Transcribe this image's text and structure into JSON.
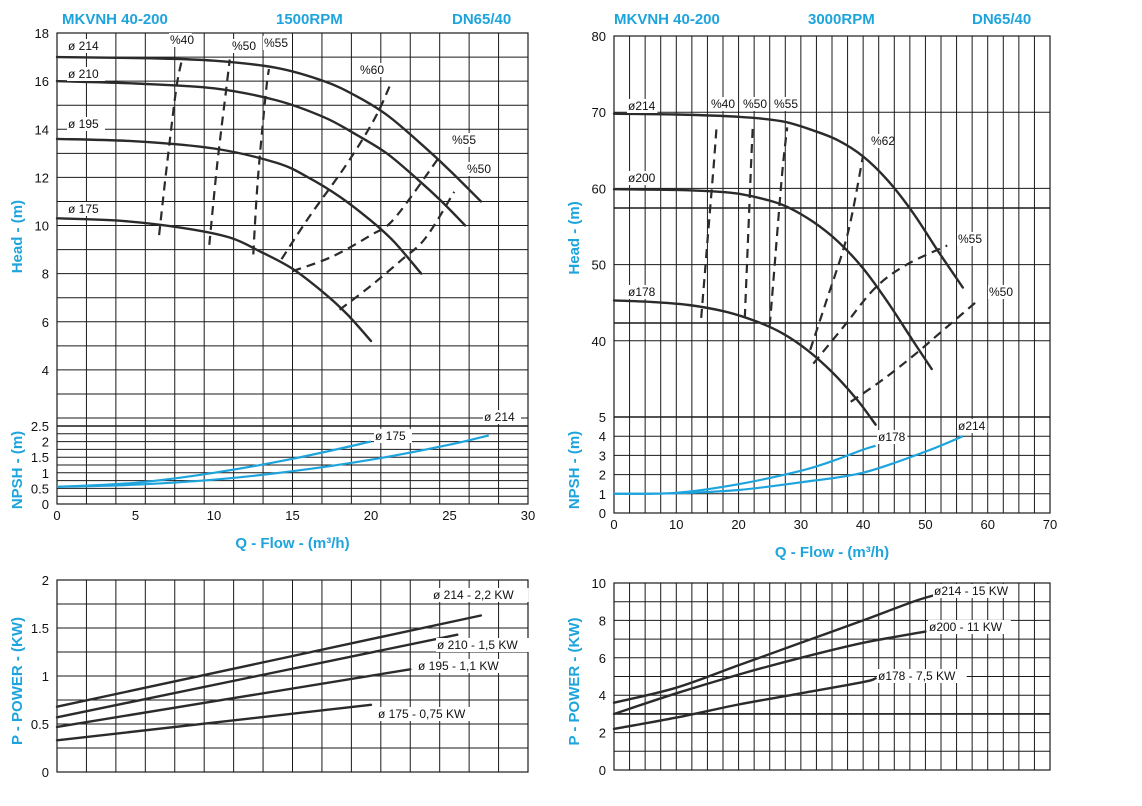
{
  "chart_data": [
    {
      "id": "c1500",
      "type": "line",
      "header": [
        "MKVNH 40-200",
        "1500RPM",
        "DN65/40"
      ],
      "xlabel": "Q - Flow - (m³/h)",
      "ylabel": "Head - (m)",
      "xlim": [
        0,
        30
      ],
      "ylim": [
        2,
        18
      ],
      "x_ticks": [
        0,
        5,
        10,
        15,
        20,
        25,
        30
      ],
      "y_ticks": [
        4,
        6,
        8,
        10,
        12,
        14,
        16,
        18
      ],
      "grid": true,
      "series": [
        {
          "name": "ø 214",
          "x": [
            0,
            6,
            10,
            14,
            17,
            19,
            21,
            23,
            25,
            27
          ],
          "y": [
            17.0,
            16.95,
            16.85,
            16.55,
            16.0,
            15.4,
            14.6,
            13.5,
            12.3,
            11.0
          ]
        },
        {
          "name": "ø 210",
          "x": [
            0,
            5,
            10,
            14,
            17,
            19,
            21,
            23,
            24.5,
            26
          ],
          "y": [
            16.0,
            15.9,
            15.7,
            15.2,
            14.5,
            13.8,
            13.0,
            11.9,
            11.0,
            10.0
          ]
        },
        {
          "name": "ø 195",
          "x": [
            0,
            5,
            10,
            14,
            16,
            18,
            20,
            21.5,
            23.2
          ],
          "y": [
            13.6,
            13.5,
            13.2,
            12.6,
            12.0,
            11.2,
            10.2,
            9.3,
            8.0
          ]
        },
        {
          "name": "ø 175",
          "x": [
            0,
            4,
            8,
            11,
            13,
            15,
            17,
            18.5,
            20
          ],
          "y": [
            10.3,
            10.2,
            9.9,
            9.5,
            8.9,
            8.2,
            7.2,
            6.3,
            5.2
          ]
        }
      ],
      "efficiency": [
        {
          "name": "%40",
          "x": [
            6.5,
            7.0,
            7.6,
            8.0
          ],
          "y": [
            9.6,
            12.5,
            15.7,
            17.0
          ]
        },
        {
          "name": "%50",
          "x": [
            9.7,
            10.2,
            10.8,
            11.0
          ],
          "y": [
            9.2,
            12.5,
            15.8,
            16.9
          ]
        },
        {
          "name": "%55",
          "x": [
            12.5,
            12.8,
            13.3,
            13.5
          ],
          "y": [
            8.8,
            12.0,
            15.5,
            16.5
          ]
        },
        {
          "name": "%60",
          "x": [
            14.3,
            16.0,
            18.4,
            20.2,
            21.2
          ],
          "y": [
            8.6,
            10.3,
            12.5,
            14.4,
            15.8
          ]
        },
        {
          "name": "%55",
          "x": [
            15.0,
            17.5,
            20.0,
            21.5,
            24.3
          ],
          "y": [
            8.1,
            8.7,
            9.6,
            10.3,
            12.8
          ]
        },
        {
          "name": "%50",
          "x": [
            18.0,
            20.0,
            22.0,
            23.5,
            25.3
          ],
          "y": [
            6.5,
            7.5,
            8.6,
            9.5,
            11.4
          ]
        }
      ],
      "curve_labels": [
        "ø 214",
        "ø 210",
        "ø 195",
        "ø 175",
        "%40",
        "%50",
        "%55",
        "%60",
        "%55",
        "%50"
      ],
      "npsh": {
        "ylabel": "NPSH - (m)",
        "ylim": [
          0,
          2.5
        ],
        "y_ticks": [
          0,
          0.5,
          1,
          1.5,
          2,
          2.5
        ],
        "series": [
          {
            "name": "ø 175",
            "x": [
              0,
              5,
              10,
              15,
              20
            ],
            "y": [
              0.55,
              0.68,
              1.0,
              1.45,
              2.0
            ]
          },
          {
            "name": "ø 214",
            "x": [
              0,
              5,
              10,
              15,
              20,
              25,
              27.5
            ],
            "y": [
              0.55,
              0.62,
              0.78,
              1.05,
              1.42,
              1.9,
              2.2
            ]
          }
        ]
      },
      "power": {
        "ylabel": "P - POWER - (KW)",
        "ylim": [
          0,
          2
        ],
        "y_ticks": [
          0,
          0.5,
          1,
          1.5,
          2
        ],
        "series": [
          {
            "name": "ø 214 - 2,2 KW",
            "x": [
              0,
              27
            ],
            "y": [
              0.68,
              1.63
            ]
          },
          {
            "name": "ø 210 - 1,5 KW",
            "x": [
              0,
              25.5
            ],
            "y": [
              0.57,
              1.43
            ]
          },
          {
            "name": "ø 195 - 1,1 KW",
            "x": [
              0,
              22.5
            ],
            "y": [
              0.47,
              1.07
            ]
          },
          {
            "name": "ø 175 - 0,75 KW",
            "x": [
              0,
              20
            ],
            "y": [
              0.33,
              0.7
            ]
          }
        ]
      }
    },
    {
      "id": "c3000",
      "type": "line",
      "header": [
        "MKVNH 40-200",
        "3000RPM",
        "DN65/40"
      ],
      "xlabel": "Q - Flow - (m³/h)",
      "ylabel": "Head - (m)",
      "xlim": [
        0,
        70
      ],
      "ylim": [
        30,
        80
      ],
      "x_ticks": [
        0,
        10,
        20,
        30,
        40,
        50,
        60,
        70
      ],
      "y_ticks": [
        40,
        50,
        60,
        70,
        80
      ],
      "grid": true,
      "series": [
        {
          "name": "ø214",
          "x": [
            0,
            10,
            20,
            27,
            32,
            36,
            40,
            44,
            48,
            52,
            56
          ],
          "y": [
            69.8,
            69.7,
            69.4,
            68.8,
            67.6,
            66.3,
            64.2,
            61.0,
            56.8,
            51.8,
            47.0
          ]
        },
        {
          "name": "ø200",
          "x": [
            0,
            10,
            16,
            20,
            25,
            28,
            32,
            36,
            40,
            44,
            48,
            51
          ],
          "y": [
            59.9,
            59.8,
            59.6,
            59.3,
            58.4,
            57.5,
            55.6,
            53.0,
            49.5,
            45.0,
            40.0,
            36.3
          ]
        },
        {
          "name": "ø178",
          "x": [
            0,
            6,
            12,
            18,
            23,
            27,
            31,
            35,
            39,
            42
          ],
          "y": [
            45.3,
            45.1,
            44.7,
            43.8,
            42.5,
            41.0,
            38.8,
            35.9,
            32.3,
            29.0
          ]
        }
      ],
      "efficiency": [
        {
          "name": "%40",
          "x": [
            14.0,
            15.0,
            16.0,
            16.5
          ],
          "y": [
            43.0,
            53.0,
            63.0,
            68.5
          ]
        },
        {
          "name": "%50",
          "x": [
            21.0,
            21.5,
            22.0,
            22.3
          ],
          "y": [
            43.0,
            53.0,
            63.0,
            68.5
          ]
        },
        {
          "name": "%55",
          "x": [
            25.0,
            26.0,
            27.0,
            27.8
          ],
          "y": [
            42.0,
            52.0,
            62.0,
            68.0
          ]
        },
        {
          "name": "%62",
          "x": [
            31.5,
            34.0,
            37.5,
            40.0
          ],
          "y": [
            38.8,
            45.0,
            54.0,
            64.3
          ]
        },
        {
          "name": "%55",
          "x": [
            32.0,
            37.0,
            42.0,
            47.0,
            53.5
          ],
          "y": [
            37.0,
            42.0,
            47.0,
            50.0,
            52.5
          ]
        },
        {
          "name": "%50",
          "x": [
            38.0,
            43.0,
            48.0,
            53.0,
            58.0
          ],
          "y": [
            32.0,
            34.8,
            38.0,
            41.5,
            45.0
          ]
        }
      ],
      "curve_labels": [
        "ø214",
        "ø200",
        "ø178",
        "%40",
        "%50",
        "%55",
        "%62",
        "%55",
        "%50"
      ],
      "npsh": {
        "ylabel": "NPSH - (m)",
        "ylim": [
          0,
          5
        ],
        "y_ticks": [
          0,
          1,
          2,
          3,
          4,
          5
        ],
        "series": [
          {
            "name": "ø178",
            "x": [
              0,
              10,
              20,
              30,
              35,
              40,
              42
            ],
            "y": [
              1.0,
              1.05,
              1.5,
              2.2,
              2.7,
              3.3,
              3.5
            ]
          },
          {
            "name": "ø214",
            "x": [
              0,
              10,
              20,
              30,
              40,
              50,
              56
            ],
            "y": [
              1.0,
              1.03,
              1.2,
              1.6,
              2.1,
              3.2,
              4.0
            ]
          }
        ]
      },
      "power": {
        "ylabel": "P - POWER - (KW)",
        "ylim": [
          0,
          10
        ],
        "y_ticks": [
          0,
          2,
          4,
          6,
          8,
          10
        ],
        "series": [
          {
            "name": "ø214 - 15 KW",
            "x": [
              0,
              10,
              20,
              30,
              40,
              48,
              52
            ],
            "y": [
              3.6,
              4.4,
              5.6,
              6.8,
              8.0,
              9.0,
              9.4
            ]
          },
          {
            "name": "ø200 - 11 KW",
            "x": [
              0,
              10,
              20,
              30,
              40,
              50
            ],
            "y": [
              3.0,
              4.1,
              5.1,
              6.0,
              6.8,
              7.4
            ]
          },
          {
            "name": "ø178 - 7,5 KW",
            "x": [
              0,
              10,
              20,
              30,
              40,
              42
            ],
            "y": [
              2.2,
              2.8,
              3.5,
              4.1,
              4.7,
              4.9
            ]
          }
        ]
      }
    }
  ]
}
